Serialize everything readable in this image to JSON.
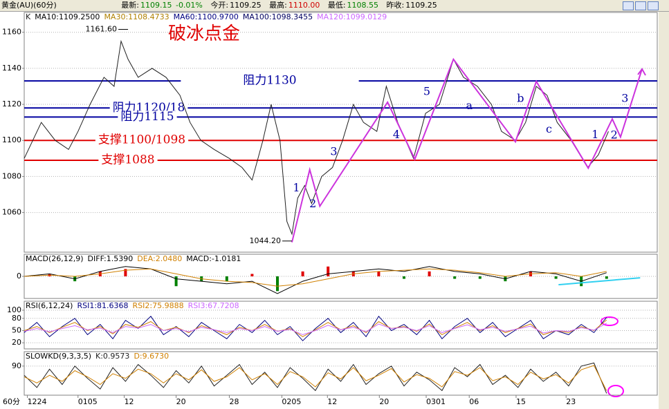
{
  "header": {
    "symbol": "黄金(AU)(60分)",
    "fields": [
      {
        "label": "最新:",
        "value": "1109.15"
      },
      {
        "label": "今开:",
        "value": "1109.25"
      },
      {
        "label": "最高:",
        "value": "1110.00"
      },
      {
        "label": "最低:",
        "value": "1108.55"
      },
      {
        "label": "昨收:",
        "value": "1109.25"
      }
    ],
    "change": "-0.01%"
  },
  "chart_data": [
    {
      "type": "line",
      "title": "破冰点金",
      "xlim": [
        0,
        100
      ],
      "ylim": [
        1038,
        1171
      ],
      "yticks": [
        1060,
        1080,
        1100,
        1120,
        1140,
        1160
      ],
      "grid": true,
      "series": [
        {
          "name": "K",
          "color": "#202020",
          "x": [
            0,
            2.7,
            4.9,
            7,
            8.5,
            10.4,
            12.6,
            14.2,
            15.3,
            16.4,
            18,
            20.2,
            22.4,
            24.6,
            26.2,
            27.9,
            30,
            32.4,
            34.4,
            36,
            37.7,
            39,
            40.4,
            41.5,
            42.3,
            43.2,
            44.3,
            45.4,
            47,
            48.7,
            50.3,
            52,
            53.6,
            55.7,
            57.2,
            59,
            61.5,
            63.4,
            65.6,
            67.8,
            69.4,
            71.6,
            73.8,
            75.4,
            77.6,
            79.2,
            80.9,
            82.6,
            84.2,
            86.4,
            89,
            90.7,
            92.3
          ],
          "values": [
            1090,
            1110,
            1100,
            1095,
            1105,
            1120,
            1135,
            1130,
            1155,
            1145,
            1135,
            1140,
            1135,
            1125,
            1110,
            1100,
            1095,
            1090,
            1085,
            1078,
            1100,
            1120,
            1100,
            1055,
            1048,
            1068,
            1075,
            1065,
            1080,
            1085,
            1100,
            1120,
            1110,
            1105,
            1130,
            1110,
            1090,
            1115,
            1120,
            1145,
            1135,
            1130,
            1120,
            1105,
            1100,
            1110,
            1130,
            1125,
            1110,
            1100,
            1085,
            1092,
            1105
          ]
        }
      ],
      "indicators": [
        {
          "label": "MA10:1109.2500",
          "color": "#000000"
        },
        {
          "label": "MA30:1108.4733",
          "color": "#b08000"
        },
        {
          "label": "MA60:1100.9700",
          "color": "#000080"
        },
        {
          "label": "MA100:1098.3455",
          "color": "#000060"
        },
        {
          "label": "MA120:1099.0129",
          "color": "#cc66ff"
        }
      ],
      "levels": [
        {
          "label": "阻力1130",
          "value": 1133,
          "color": "#0000a0"
        },
        {
          "label": "阻力1120/18",
          "value": 1118,
          "color": "#0000a0"
        },
        {
          "label": "阻力1115",
          "value": 1113,
          "color": "#0000a0"
        },
        {
          "label": "支撑1100/1098",
          "value": 1100,
          "color": "#e00000"
        },
        {
          "label": "支撑1088",
          "value": 1089,
          "color": "#e00000"
        }
      ],
      "wave_path": {
        "color": "#cc33dd",
        "x": [
          42.3,
          45.1,
          46.7,
          57.4,
          61.7,
          67.8,
          77.6,
          80.9,
          89.1,
          92.9,
          94.2,
          97.6
        ],
        "values": [
          1043.5,
          1083.8,
          1063.5,
          1121.2,
          1089.6,
          1145,
          1099.2,
          1132.7,
          1084.6,
          1111.9,
          1101.9,
          1139.6
        ]
      },
      "wave_labels": [
        {
          "text": "1",
          "x": 43,
          "y": 1073.5
        },
        {
          "text": "2",
          "x": 45.6,
          "y": 1064.6
        },
        {
          "text": "3",
          "x": 48.9,
          "y": 1093.5
        },
        {
          "text": "4",
          "x": 58.8,
          "y": 1103
        },
        {
          "text": "5",
          "x": 63.6,
          "y": 1127
        },
        {
          "text": "a",
          "x": 70.3,
          "y": 1119
        },
        {
          "text": "b",
          "x": 78.4,
          "y": 1123
        },
        {
          "text": "c",
          "x": 82.9,
          "y": 1106
        },
        {
          "text": "1",
          "x": 90.2,
          "y": 1103
        },
        {
          "text": "2",
          "x": 93.2,
          "y": 1102.7
        },
        {
          "text": "3",
          "x": 94.9,
          "y": 1123
        }
      ],
      "extremes": [
        {
          "label": "1161.60",
          "x": 16.4,
          "value": 1161.6
        },
        {
          "label": "1044.20",
          "x": 42.3,
          "value": 1044.2
        }
      ]
    },
    {
      "type": "macd",
      "title": "MACD(26,12,9)",
      "xlim": [
        0,
        100
      ],
      "ylim": [
        -9,
        9
      ],
      "yticks": [
        0
      ],
      "grid": true,
      "series": [
        {
          "name": "DIFF:1.5390",
          "color": "#000000",
          "x": [
            0,
            4,
            8,
            12,
            16,
            20,
            24,
            28,
            32,
            36,
            40,
            44,
            48,
            52,
            56,
            60,
            64,
            68,
            72,
            76,
            80,
            84,
            88,
            92
          ],
          "values": [
            0,
            1,
            -1,
            2,
            4,
            3,
            -1,
            -2,
            -3,
            -2,
            -7,
            -2,
            1,
            2,
            3,
            2,
            4,
            2,
            1,
            -1,
            2,
            1,
            -2,
            1.5
          ]
        },
        {
          "name": "DEA:2.0480",
          "color": "#d08000",
          "x": [
            0,
            4,
            8,
            12,
            16,
            20,
            24,
            28,
            32,
            36,
            40,
            44,
            48,
            52,
            56,
            60,
            64,
            68,
            72,
            76,
            80,
            84,
            88,
            92
          ],
          "values": [
            0,
            0.5,
            0,
            1,
            2.5,
            3,
            1,
            -1,
            -2,
            -2.5,
            -4,
            -3,
            -1,
            1,
            2,
            2.5,
            3,
            2.5,
            1.5,
            0,
            1,
            1.5,
            0,
            2
          ]
        }
      ],
      "bars": {
        "name": "MACD:-1.0181",
        "up_color": "#e00000",
        "down_color": "#008000",
        "x": [
          0,
          4,
          8,
          12,
          16,
          20,
          24,
          28,
          32,
          36,
          40,
          44,
          48,
          52,
          56,
          60,
          64,
          68,
          72,
          76,
          80,
          84,
          88,
          92
        ],
        "values": [
          0,
          1,
          -2,
          2,
          3,
          0,
          -4,
          -2,
          -2,
          1,
          -6,
          2,
          4,
          2,
          2,
          -1,
          2,
          -1,
          -1,
          -2,
          2,
          -1,
          -4,
          -1
        ]
      },
      "trendline": {
        "color": "#30d0f0",
        "x": [
          84.4,
          97.3
        ],
        "values": [
          -3.4,
          -0.6
        ]
      }
    },
    {
      "type": "line",
      "title": "RSI(6,12,24)",
      "xlim": [
        0,
        100
      ],
      "ylim": [
        5,
        122
      ],
      "yticks": [
        20,
        50,
        80,
        100
      ],
      "grid": true,
      "series": [
        {
          "name": "RSI1:81.6368",
          "color": "#000080",
          "x": [
            0,
            2,
            4,
            6,
            8,
            10,
            12,
            14,
            16,
            18,
            20,
            22,
            24,
            26,
            28,
            30,
            32,
            34,
            36,
            38,
            40,
            42,
            44,
            46,
            48,
            50,
            52,
            54,
            56,
            58,
            60,
            62,
            64,
            66,
            68,
            70,
            72,
            74,
            76,
            78,
            80,
            82,
            84,
            86,
            88,
            90,
            92
          ],
          "values": [
            45,
            70,
            35,
            60,
            80,
            40,
            65,
            30,
            75,
            55,
            85,
            40,
            60,
            35,
            70,
            50,
            30,
            65,
            45,
            75,
            40,
            60,
            25,
            55,
            80,
            45,
            70,
            35,
            85,
            50,
            65,
            40,
            75,
            30,
            60,
            80,
            45,
            70,
            35,
            55,
            75,
            30,
            50,
            40,
            65,
            45,
            82
          ]
        },
        {
          "name": "RSI2:75.9888",
          "color": "#d08000",
          "x": [
            0,
            2,
            4,
            6,
            8,
            10,
            12,
            14,
            16,
            18,
            20,
            22,
            24,
            26,
            28,
            30,
            32,
            34,
            36,
            38,
            40,
            42,
            44,
            46,
            48,
            50,
            52,
            54,
            56,
            58,
            60,
            62,
            64,
            66,
            68,
            70,
            72,
            74,
            76,
            78,
            80,
            82,
            84,
            86,
            88,
            90,
            92
          ],
          "values": [
            50,
            60,
            45,
            58,
            70,
            50,
            60,
            42,
            65,
            58,
            72,
            50,
            58,
            45,
            62,
            52,
            40,
            58,
            50,
            65,
            48,
            55,
            35,
            52,
            70,
            52,
            62,
            45,
            72,
            55,
            60,
            48,
            66,
            40,
            56,
            70,
            50,
            62,
            45,
            55,
            66,
            40,
            50,
            45,
            60,
            50,
            76
          ]
        },
        {
          "name": "RSI3:67.7208",
          "color": "#cc66ff",
          "x": [
            0,
            2,
            4,
            6,
            8,
            10,
            12,
            14,
            16,
            18,
            20,
            22,
            24,
            26,
            28,
            30,
            32,
            34,
            36,
            38,
            40,
            42,
            44,
            46,
            48,
            50,
            52,
            54,
            56,
            58,
            60,
            62,
            64,
            66,
            68,
            70,
            72,
            74,
            76,
            78,
            80,
            82,
            84,
            86,
            88,
            90,
            92
          ],
          "values": [
            48,
            55,
            47,
            55,
            62,
            52,
            56,
            45,
            60,
            56,
            65,
            50,
            55,
            47,
            58,
            52,
            45,
            55,
            50,
            60,
            48,
            53,
            40,
            50,
            63,
            52,
            58,
            47,
            66,
            55,
            58,
            50,
            62,
            45,
            55,
            64,
            52,
            58,
            48,
            54,
            61,
            44,
            50,
            48,
            57,
            51,
            68
          ]
        }
      ]
    },
    {
      "type": "line",
      "title": "SLOWKD(9,3,3,5)",
      "xlim": [
        0,
        100
      ],
      "ylim": [
        -5,
        137
      ],
      "yticks": [
        90
      ],
      "grid": true,
      "x_label": "60分",
      "xticks": [
        {
          "value": 0.5,
          "label": "1224"
        },
        {
          "value": 8.5,
          "label": "0105"
        },
        {
          "value": 15.8,
          "label": "12"
        },
        {
          "value": 24,
          "label": "20"
        },
        {
          "value": 32.4,
          "label": "28"
        },
        {
          "value": 40.7,
          "label": "0205"
        },
        {
          "value": 47.9,
          "label": "12"
        },
        {
          "value": 56.1,
          "label": "20"
        },
        {
          "value": 63.5,
          "label": "0301"
        },
        {
          "value": 70.3,
          "label": "06"
        },
        {
          "value": 77.7,
          "label": "15"
        },
        {
          "value": 85.6,
          "label": "23"
        }
      ],
      "series": [
        {
          "name": "K:0.9573",
          "color": "#202020",
          "x": [
            0,
            2,
            4,
            6,
            8,
            10,
            12,
            14,
            16,
            18,
            20,
            22,
            24,
            26,
            28,
            30,
            32,
            34,
            36,
            38,
            40,
            42,
            44,
            46,
            48,
            50,
            52,
            54,
            56,
            58,
            60,
            62,
            64,
            66,
            68,
            70,
            72,
            74,
            76,
            78,
            80,
            82,
            84,
            86,
            88,
            90,
            92
          ],
          "values": [
            60,
            20,
            80,
            30,
            90,
            50,
            15,
            85,
            40,
            95,
            60,
            20,
            75,
            35,
            90,
            25,
            60,
            95,
            30,
            70,
            20,
            85,
            50,
            10,
            80,
            40,
            95,
            30,
            65,
            90,
            25,
            70,
            45,
            10,
            85,
            55,
            95,
            30,
            60,
            20,
            80,
            40,
            70,
            25,
            90,
            100,
            0.9573
          ]
        },
        {
          "name": "D:9.6730",
          "color": "#d08000",
          "x": [
            0,
            2,
            4,
            6,
            8,
            10,
            12,
            14,
            16,
            18,
            20,
            22,
            24,
            26,
            28,
            30,
            32,
            34,
            36,
            38,
            40,
            42,
            44,
            46,
            48,
            50,
            52,
            54,
            56,
            58,
            60,
            62,
            64,
            66,
            68,
            70,
            72,
            74,
            76,
            78,
            80,
            82,
            84,
            86,
            88,
            90,
            92
          ],
          "values": [
            55,
            35,
            60,
            40,
            75,
            55,
            30,
            65,
            50,
            80,
            65,
            35,
            65,
            45,
            78,
            40,
            55,
            85,
            45,
            65,
            30,
            72,
            55,
            22,
            68,
            48,
            85,
            42,
            60,
            82,
            38,
            62,
            50,
            22,
            72,
            60,
            85,
            42,
            55,
            30,
            70,
            48,
            62,
            35,
            78,
            92,
            9.673
          ]
        }
      ]
    }
  ]
}
